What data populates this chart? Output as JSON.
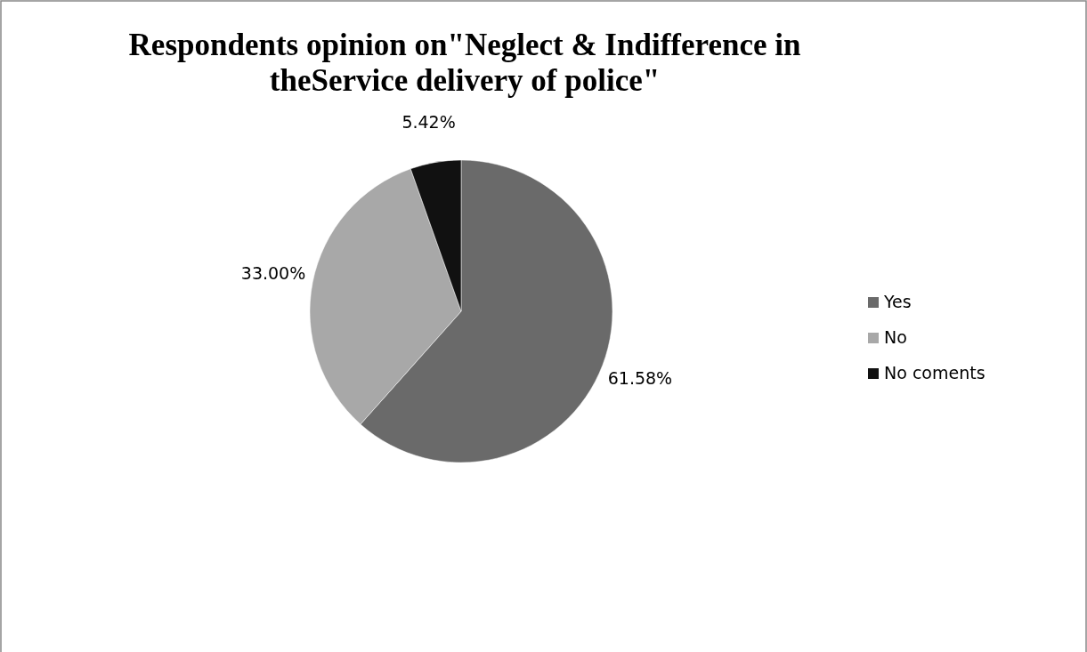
{
  "chart_data": {
    "type": "pie",
    "title": "Respondents opinion on\"Neglect & Indifference in theService delivery of police\"",
    "categories": [
      "Yes",
      "No",
      "No coments"
    ],
    "values": [
      61.58,
      33.0,
      5.42
    ],
    "value_labels": [
      "61.58%",
      "33.00%",
      "5.42%"
    ],
    "colors": [
      "#6a6a6a",
      "#a8a8a8",
      "#111111"
    ],
    "legend": "right"
  }
}
